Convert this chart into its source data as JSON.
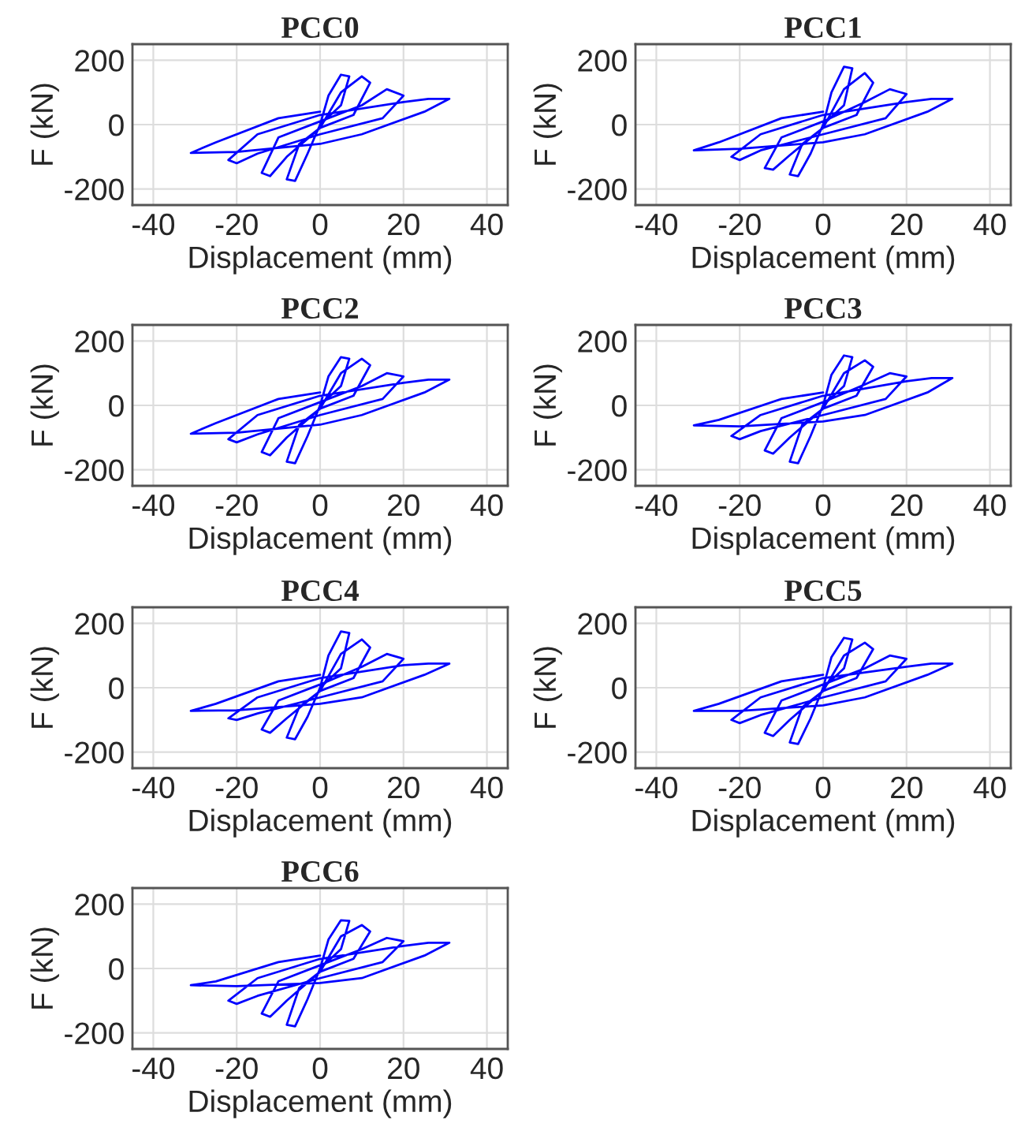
{
  "chart_data": [
    {
      "type": "line",
      "title": "PCC0",
      "xlabel": "Displacement (mm)",
      "ylabel": "F (kN)",
      "xlim": [
        -45,
        45
      ],
      "ylim": [
        -250,
        250
      ],
      "xticks": [
        -40,
        -20,
        0,
        20,
        40
      ],
      "yticks": [
        -200,
        0,
        200
      ],
      "grid": true,
      "x": [
        0,
        2,
        5,
        7,
        5,
        0,
        -3,
        -6,
        -8,
        -5,
        0,
        5,
        10,
        12,
        8,
        0,
        -8,
        -12,
        -14,
        -10,
        0,
        10,
        16,
        20,
        15,
        0,
        -15,
        -20,
        -22,
        -15,
        0,
        20,
        26,
        31,
        25,
        10,
        0,
        -20,
        -31,
        -25,
        -10,
        0
      ],
      "series": [
        {
          "color": "#0000ff",
          "values": [
            0,
            90,
            155,
            150,
            60,
            0,
            -90,
            -175,
            -170,
            -60,
            -10,
            100,
            150,
            130,
            30,
            -10,
            -100,
            -160,
            -150,
            -40,
            10,
            60,
            110,
            90,
            20,
            -30,
            -90,
            -120,
            -110,
            -30,
            30,
            70,
            80,
            80,
            40,
            -30,
            -60,
            -85,
            -88,
            -55,
            20,
            40
          ]
        }
      ]
    },
    {
      "type": "line",
      "title": "PCC1",
      "xlabel": "Displacement (mm)",
      "ylabel": "F (kN)",
      "xlim": [
        -45,
        45
      ],
      "ylim": [
        -250,
        250
      ],
      "xticks": [
        -40,
        -20,
        0,
        20,
        40
      ],
      "yticks": [
        -200,
        0,
        200
      ],
      "grid": true,
      "x": [
        0,
        2,
        5,
        7,
        5,
        0,
        -3,
        -6,
        -8,
        -5,
        0,
        5,
        10,
        12,
        8,
        0,
        -8,
        -12,
        -14,
        -10,
        0,
        10,
        16,
        20,
        15,
        0,
        -15,
        -20,
        -22,
        -15,
        0,
        20,
        26,
        31,
        25,
        10,
        0,
        -20,
        -31,
        -25,
        -10,
        0
      ],
      "series": [
        {
          "color": "#0000ff",
          "values": [
            0,
            100,
            180,
            175,
            60,
            0,
            -90,
            -160,
            -155,
            -60,
            -10,
            110,
            160,
            130,
            30,
            -10,
            -95,
            -140,
            -135,
            -40,
            10,
            70,
            110,
            95,
            20,
            -30,
            -80,
            -110,
            -100,
            -30,
            30,
            70,
            80,
            80,
            40,
            -30,
            -55,
            -75,
            -80,
            -55,
            20,
            40
          ]
        }
      ]
    },
    {
      "type": "line",
      "title": "PCC2",
      "xlabel": "Displacement (mm)",
      "ylabel": "F (kN)",
      "xlim": [
        -45,
        45
      ],
      "ylim": [
        -250,
        250
      ],
      "xticks": [
        -40,
        -20,
        0,
        20,
        40
      ],
      "yticks": [
        -200,
        0,
        200
      ],
      "grid": true,
      "x": [
        0,
        2,
        5,
        7,
        5,
        0,
        -3,
        -6,
        -8,
        -5,
        0,
        5,
        10,
        12,
        8,
        0,
        -8,
        -12,
        -14,
        -10,
        0,
        10,
        16,
        20,
        15,
        0,
        -15,
        -20,
        -22,
        -15,
        0,
        20,
        26,
        31,
        25,
        10,
        0,
        -20,
        -31,
        -25,
        -10,
        0
      ],
      "series": [
        {
          "color": "#0000ff",
          "values": [
            0,
            90,
            150,
            145,
            60,
            0,
            -95,
            -180,
            -175,
            -60,
            -10,
            100,
            145,
            125,
            30,
            -10,
            -100,
            -155,
            -145,
            -40,
            10,
            60,
            100,
            90,
            20,
            -30,
            -90,
            -115,
            -105,
            -30,
            30,
            70,
            80,
            80,
            40,
            -30,
            -60,
            -85,
            -88,
            -55,
            20,
            40
          ]
        }
      ]
    },
    {
      "type": "line",
      "title": "PCC3",
      "xlabel": "Displacement (mm)",
      "ylabel": "F (kN)",
      "xlim": [
        -45,
        45
      ],
      "ylim": [
        -250,
        250
      ],
      "xticks": [
        -40,
        -20,
        0,
        20,
        40
      ],
      "yticks": [
        -200,
        0,
        200
      ],
      "grid": true,
      "x": [
        0,
        2,
        5,
        7,
        5,
        0,
        -3,
        -6,
        -8,
        -5,
        0,
        5,
        10,
        12,
        8,
        0,
        -8,
        -12,
        -14,
        -10,
        0,
        10,
        16,
        20,
        15,
        0,
        -15,
        -20,
        -22,
        -15,
        0,
        20,
        26,
        31,
        25,
        10,
        0,
        -20,
        -31,
        -25,
        -10,
        0
      ],
      "series": [
        {
          "color": "#0000ff",
          "values": [
            0,
            95,
            155,
            150,
            60,
            0,
            -95,
            -180,
            -175,
            -60,
            -10,
            100,
            140,
            120,
            30,
            -10,
            -100,
            -150,
            -140,
            -40,
            10,
            65,
            100,
            90,
            20,
            -30,
            -80,
            -105,
            -95,
            -30,
            30,
            75,
            85,
            85,
            40,
            -30,
            -50,
            -65,
            -62,
            -45,
            20,
            40
          ]
        }
      ]
    },
    {
      "type": "line",
      "title": "PCC4",
      "xlabel": "Displacement (mm)",
      "ylabel": "F (kN)",
      "xlim": [
        -45,
        45
      ],
      "ylim": [
        -250,
        250
      ],
      "xticks": [
        -40,
        -20,
        0,
        20,
        40
      ],
      "yticks": [
        -200,
        0,
        200
      ],
      "grid": true,
      "x": [
        0,
        2,
        5,
        7,
        5,
        0,
        -3,
        -6,
        -8,
        -5,
        0,
        5,
        10,
        12,
        8,
        0,
        -8,
        -12,
        -14,
        -10,
        0,
        10,
        16,
        20,
        15,
        0,
        -15,
        -20,
        -22,
        -15,
        0,
        20,
        26,
        31,
        25,
        10,
        0,
        -20,
        -31,
        -25,
        -10,
        0
      ],
      "series": [
        {
          "color": "#0000ff",
          "values": [
            0,
            100,
            175,
            170,
            60,
            0,
            -90,
            -160,
            -155,
            -60,
            -10,
            105,
            150,
            125,
            30,
            -10,
            -95,
            -140,
            -130,
            -40,
            10,
            65,
            105,
            90,
            20,
            -30,
            -80,
            -100,
            -95,
            -30,
            30,
            70,
            75,
            75,
            40,
            -30,
            -50,
            -70,
            -72,
            -50,
            20,
            40
          ]
        }
      ]
    },
    {
      "type": "line",
      "title": "PCC5",
      "xlabel": "Displacement (mm)",
      "ylabel": "F (kN)",
      "xlim": [
        -45,
        45
      ],
      "ylim": [
        -250,
        250
      ],
      "xticks": [
        -40,
        -20,
        0,
        20,
        40
      ],
      "yticks": [
        -200,
        0,
        200
      ],
      "grid": true,
      "x": [
        0,
        2,
        5,
        7,
        5,
        0,
        -3,
        -6,
        -8,
        -5,
        0,
        5,
        10,
        12,
        8,
        0,
        -8,
        -12,
        -14,
        -10,
        0,
        10,
        16,
        20,
        15,
        0,
        -15,
        -20,
        -22,
        -15,
        0,
        20,
        26,
        31,
        25,
        10,
        0,
        -20,
        -31,
        -25,
        -10,
        0
      ],
      "series": [
        {
          "color": "#0000ff",
          "values": [
            0,
            95,
            155,
            150,
            60,
            0,
            -95,
            -175,
            -170,
            -60,
            -10,
            100,
            140,
            120,
            30,
            -10,
            -100,
            -150,
            -140,
            -40,
            10,
            60,
            100,
            90,
            20,
            -30,
            -85,
            -110,
            -100,
            -30,
            30,
            65,
            75,
            75,
            40,
            -30,
            -55,
            -72,
            -72,
            -50,
            20,
            40
          ]
        }
      ]
    },
    {
      "type": "line",
      "title": "PCC6",
      "xlabel": "Displacement (mm)",
      "ylabel": "F (kN)",
      "xlim": [
        -45,
        45
      ],
      "ylim": [
        -250,
        250
      ],
      "xticks": [
        -40,
        -20,
        0,
        20,
        40
      ],
      "yticks": [
        -200,
        0,
        200
      ],
      "grid": true,
      "x": [
        0,
        2,
        5,
        7,
        5,
        0,
        -3,
        -6,
        -8,
        -5,
        0,
        5,
        10,
        12,
        8,
        0,
        -8,
        -12,
        -14,
        -10,
        0,
        10,
        16,
        20,
        15,
        0,
        -15,
        -20,
        -22,
        -15,
        0,
        20,
        26,
        31,
        25,
        10,
        0,
        -20,
        -31,
        -25,
        -10,
        0
      ],
      "series": [
        {
          "color": "#0000ff",
          "values": [
            0,
            90,
            150,
            148,
            60,
            0,
            -95,
            -180,
            -175,
            -60,
            -10,
            100,
            135,
            115,
            30,
            -10,
            -100,
            -150,
            -140,
            -40,
            10,
            60,
            95,
            85,
            20,
            -30,
            -85,
            -110,
            -100,
            -30,
            30,
            70,
            80,
            80,
            40,
            -30,
            -45,
            -55,
            -52,
            -40,
            20,
            40
          ]
        }
      ]
    }
  ]
}
